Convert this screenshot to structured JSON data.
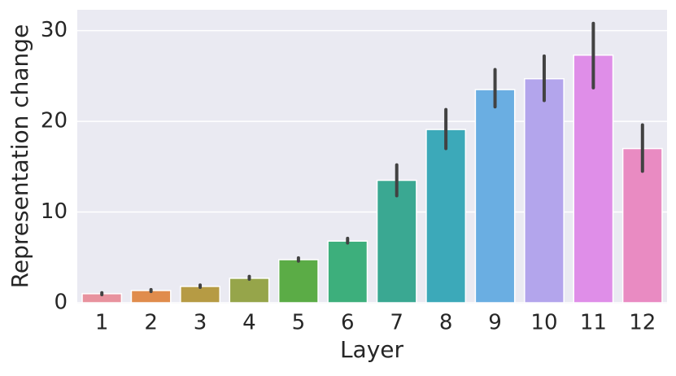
{
  "chart_data": {
    "type": "bar",
    "x_label": "Layer",
    "y_label": "Representation change",
    "categories": [
      "1",
      "2",
      "3",
      "4",
      "5",
      "6",
      "7",
      "8",
      "9",
      "10",
      "11",
      "12"
    ],
    "values": [
      1.0,
      1.35,
      1.8,
      2.7,
      4.75,
      6.8,
      13.5,
      19.1,
      23.5,
      24.7,
      27.3,
      17.0
    ],
    "errors_low": [
      0.9,
      1.25,
      1.7,
      2.6,
      4.6,
      6.6,
      11.8,
      17.0,
      21.6,
      22.3,
      23.7,
      14.5
    ],
    "errors_high": [
      1.1,
      1.45,
      1.95,
      2.9,
      4.95,
      7.1,
      15.2,
      21.3,
      25.7,
      27.2,
      30.8,
      19.6
    ],
    "colors": [
      "#e8929e",
      "#e08c4c",
      "#b69b44",
      "#96a54a",
      "#5bac46",
      "#3daf7c",
      "#3aa892",
      "#3ca9b9",
      "#6aaee2",
      "#b3a5ec",
      "#df8ee8",
      "#e98bc2"
    ],
    "ylim": [
      0,
      32.3
    ],
    "yticks": [
      0,
      10,
      20,
      30
    ],
    "grid": true
  }
}
